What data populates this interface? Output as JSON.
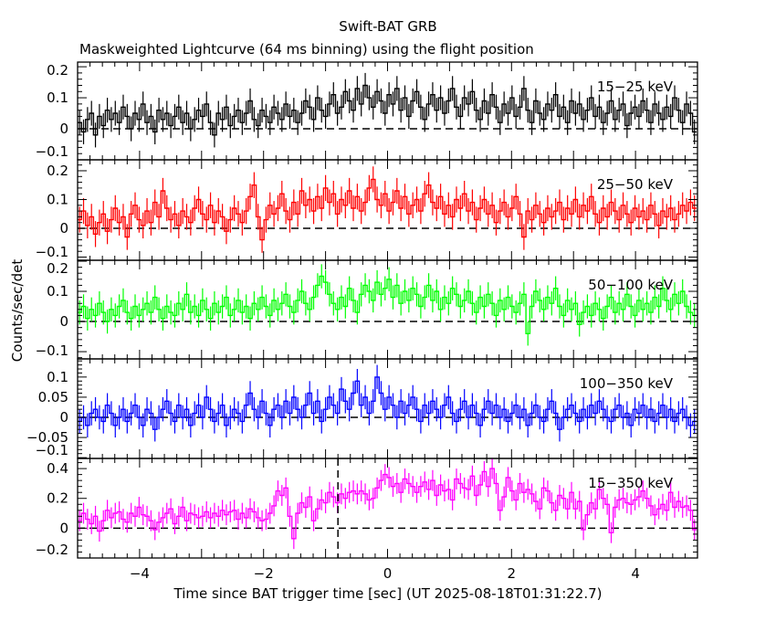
{
  "chart_data": {
    "type": "line",
    "title": "Swift-BAT GRB",
    "subtitle": "Maskweighted Lightcurve (64 ms binning) using the flight position",
    "xlabel": "Time since BAT trigger time [sec] (UT 2025-08-18T01:31:22.7)",
    "ylabel": "Counts/sec/det",
    "xlim": [
      -5,
      5
    ],
    "x_start": -5.0,
    "bin_width": 0.064,
    "xticks": [
      -4,
      -2,
      0,
      2,
      4
    ],
    "xtick_labels": [
      "−4",
      "−2",
      "0",
      "2",
      "4"
    ],
    "marker_line_x": -0.8,
    "panels": [
      {
        "name": "15-25 keV",
        "label": "15−25 keV",
        "color": "#000000",
        "ylim": [
          -0.1,
          0.215
        ],
        "yticks": [
          -0.1,
          0,
          0.1,
          0.2
        ],
        "ytick_labels": [
          "−0.1",
          "0",
          "0.1",
          "0.2"
        ],
        "error": 0.04,
        "values": [
          0.02,
          -0.01,
          0.03,
          0.05,
          -0.02,
          0.04,
          0.01,
          0.06,
          0.03,
          0.05,
          0.02,
          0.07,
          0.04,
          0.0,
          0.05,
          0.03,
          0.08,
          0.02,
          0.04,
          -0.01,
          0.06,
          0.03,
          0.05,
          0.01,
          0.04,
          0.07,
          0.02,
          0.05,
          0.0,
          0.03,
          0.06,
          0.04,
          0.08,
          0.02,
          -0.02,
          0.05,
          0.03,
          0.07,
          0.01,
          0.04,
          0.06,
          0.02,
          0.05,
          0.09,
          0.03,
          0.01,
          0.06,
          0.04,
          0.02,
          0.07,
          0.05,
          0.03,
          0.08,
          0.04,
          0.06,
          0.02,
          0.05,
          0.09,
          0.07,
          0.03,
          0.1,
          0.06,
          0.04,
          0.08,
          0.11,
          0.05,
          0.07,
          0.12,
          0.09,
          0.06,
          0.13,
          0.08,
          0.14,
          0.1,
          0.07,
          0.12,
          0.09,
          0.05,
          0.11,
          0.08,
          0.13,
          0.06,
          0.1,
          0.04,
          0.09,
          0.12,
          0.07,
          0.03,
          0.08,
          0.11,
          0.06,
          0.1,
          0.05,
          0.09,
          0.13,
          0.07,
          0.04,
          0.1,
          0.08,
          0.12,
          0.06,
          0.03,
          0.09,
          0.05,
          0.11,
          0.07,
          0.02,
          0.08,
          0.05,
          0.1,
          0.04,
          0.07,
          0.13,
          0.06,
          0.02,
          0.09,
          0.05,
          0.03,
          0.08,
          0.06,
          0.11,
          0.04,
          0.07,
          0.02,
          0.09,
          0.05,
          0.08,
          0.03,
          0.06,
          0.1,
          0.04,
          0.07,
          0.02,
          0.05,
          0.09,
          0.03,
          0.06,
          0.08,
          0.01,
          0.05,
          0.07,
          0.04,
          0.09,
          0.06,
          0.02,
          0.08,
          0.05,
          0.03,
          0.07,
          0.04,
          0.1,
          0.06,
          0.02,
          0.08,
          0.05,
          -0.01
        ]
      },
      {
        "name": "25-50 keV",
        "label": "25−50 keV",
        "color": "#ff0000",
        "ylim": [
          -0.111,
          0.238
        ],
        "yticks": [
          -0.1,
          0,
          0.1,
          0.2
        ],
        "ytick_labels": [
          "−0.1",
          "0",
          "0.1",
          "0.2"
        ],
        "error": 0.045,
        "values": [
          0.03,
          0.06,
          0.01,
          0.04,
          -0.02,
          0.02,
          0.05,
          -0.01,
          0.03,
          0.07,
          0.02,
          0.04,
          -0.03,
          0.05,
          0.08,
          0.03,
          0.01,
          0.06,
          0.02,
          0.09,
          0.04,
          0.13,
          0.07,
          0.03,
          0.05,
          0.01,
          0.06,
          0.04,
          0.02,
          0.07,
          0.1,
          0.05,
          0.03,
          0.08,
          0.02,
          0.06,
          0.04,
          -0.01,
          0.03,
          0.07,
          0.05,
          0.02,
          0.06,
          0.11,
          0.15,
          0.04,
          -0.04,
          0.03,
          0.08,
          0.05,
          0.07,
          0.12,
          0.06,
          0.03,
          0.09,
          0.05,
          0.13,
          0.08,
          0.1,
          0.06,
          0.11,
          0.07,
          0.14,
          0.09,
          0.12,
          0.05,
          0.1,
          0.08,
          0.13,
          0.07,
          0.11,
          0.06,
          0.09,
          0.14,
          0.17,
          0.1,
          0.08,
          0.12,
          0.06,
          0.09,
          0.13,
          0.07,
          0.11,
          0.05,
          0.08,
          0.1,
          0.06,
          0.12,
          0.15,
          0.09,
          0.07,
          0.11,
          0.05,
          0.08,
          0.04,
          0.1,
          0.07,
          0.12,
          0.06,
          0.09,
          0.03,
          0.07,
          0.1,
          0.05,
          0.08,
          0.02,
          0.06,
          0.09,
          0.04,
          0.07,
          0.11,
          0.05,
          -0.03,
          0.06,
          0.03,
          0.08,
          0.05,
          0.02,
          0.07,
          0.04,
          0.06,
          0.09,
          0.03,
          0.07,
          0.05,
          0.1,
          0.04,
          0.08,
          0.06,
          0.11,
          0.05,
          0.02,
          0.07,
          0.04,
          0.09,
          0.06,
          0.03,
          0.08,
          0.05,
          0.02,
          0.07,
          0.04,
          0.06,
          0.03,
          0.08,
          0.05,
          0.01,
          0.06,
          0.04,
          0.07,
          0.03,
          0.05,
          0.08,
          0.06,
          0.09,
          0.07
        ]
      },
      {
        "name": "50-100 keV",
        "label": "50−100 keV",
        "color": "#00ff00",
        "ylim": [
          -0.124,
          0.203
        ],
        "yticks": [
          -0.1,
          0,
          0.1,
          0.2
        ],
        "ytick_labels": [
          "−0.1",
          "0",
          "0.1",
          "0.2"
        ],
        "error": 0.04,
        "values": [
          0.03,
          0.05,
          0.01,
          0.04,
          0.02,
          0.06,
          0.03,
          0.0,
          0.04,
          0.02,
          0.05,
          0.07,
          0.03,
          0.01,
          0.05,
          0.02,
          0.04,
          0.06,
          0.03,
          0.08,
          0.04,
          0.01,
          0.05,
          0.03,
          0.02,
          0.06,
          0.04,
          0.09,
          0.03,
          0.05,
          0.02,
          0.07,
          0.04,
          0.01,
          0.06,
          0.03,
          0.05,
          0.08,
          0.02,
          0.04,
          0.07,
          0.03,
          0.05,
          0.01,
          0.06,
          0.04,
          0.08,
          0.05,
          0.02,
          0.07,
          0.04,
          0.06,
          0.09,
          0.05,
          0.03,
          0.07,
          0.1,
          0.06,
          0.04,
          0.08,
          0.12,
          0.15,
          0.13,
          0.09,
          0.06,
          0.04,
          0.08,
          0.05,
          0.11,
          0.07,
          0.03,
          0.09,
          0.12,
          0.1,
          0.07,
          0.13,
          0.09,
          0.11,
          0.14,
          0.08,
          0.12,
          0.06,
          0.1,
          0.07,
          0.11,
          0.09,
          0.05,
          0.08,
          0.12,
          0.07,
          0.1,
          0.04,
          0.08,
          0.06,
          0.11,
          0.09,
          0.05,
          0.07,
          0.1,
          0.06,
          0.03,
          0.08,
          0.05,
          0.09,
          0.06,
          0.02,
          0.07,
          0.04,
          0.08,
          0.05,
          0.03,
          0.06,
          0.09,
          -0.04,
          0.05,
          0.1,
          0.07,
          0.04,
          0.08,
          0.06,
          0.11,
          0.05,
          0.02,
          0.07,
          0.04,
          0.06,
          -0.01,
          0.03,
          0.05,
          0.02,
          0.06,
          0.04,
          0.01,
          0.05,
          0.08,
          0.03,
          0.06,
          0.04,
          0.09,
          0.05,
          0.02,
          0.07,
          0.04,
          0.06,
          0.03,
          0.08,
          0.05,
          0.11,
          0.07,
          0.04,
          0.09,
          0.06,
          0.1,
          0.05,
          0.03,
          0.02
        ]
      },
      {
        "name": "100-350 keV",
        "label": "100−350 keV",
        "color": "#0000ff",
        "ylim": [
          -0.102,
          0.145
        ],
        "yticks": [
          -0.1,
          -0.05,
          0,
          0.05,
          0.1
        ],
        "ytick_labels": [
          "−0.1",
          "−0.05",
          "0",
          "0.05",
          "0.1"
        ],
        "error": 0.03,
        "values": [
          -0.01,
          0.0,
          -0.02,
          0.01,
          0.02,
          0.0,
          -0.01,
          0.03,
          0.01,
          -0.02,
          0.0,
          0.02,
          -0.01,
          0.01,
          0.03,
          0.0,
          -0.02,
          0.02,
          0.01,
          -0.03,
          0.0,
          0.02,
          0.04,
          0.01,
          -0.01,
          0.03,
          0.0,
          0.02,
          -0.02,
          0.01,
          0.03,
          0.0,
          0.05,
          0.02,
          -0.01,
          0.01,
          0.03,
          -0.02,
          0.0,
          0.02,
          0.01,
          -0.01,
          0.03,
          0.06,
          0.02,
          0.0,
          0.04,
          0.01,
          -0.02,
          0.02,
          0.03,
          0.0,
          0.04,
          0.01,
          0.05,
          0.02,
          0.0,
          0.03,
          0.06,
          0.01,
          0.04,
          -0.01,
          0.02,
          0.05,
          0.03,
          0.01,
          0.07,
          0.04,
          0.02,
          0.06,
          0.09,
          0.03,
          0.05,
          0.01,
          0.04,
          0.1,
          0.06,
          0.02,
          0.05,
          0.03,
          0.0,
          0.04,
          0.01,
          0.03,
          0.05,
          0.02,
          -0.01,
          0.03,
          0.01,
          0.04,
          0.02,
          0.0,
          0.03,
          0.05,
          0.01,
          -0.01,
          0.02,
          0.04,
          0.0,
          0.03,
          0.01,
          -0.02,
          0.02,
          0.04,
          0.01,
          0.03,
          0.0,
          0.02,
          -0.01,
          0.01,
          0.03,
          0.0,
          0.02,
          -0.02,
          0.01,
          0.03,
          0.0,
          -0.01,
          0.02,
          0.04,
          0.01,
          -0.03,
          0.0,
          0.02,
          0.03,
          0.01,
          -0.01,
          0.02,
          0.0,
          0.03,
          0.01,
          0.04,
          0.02,
          0.0,
          -0.01,
          0.02,
          0.03,
          0.0,
          0.01,
          -0.02,
          0.02,
          0.01,
          0.03,
          0.0,
          0.02,
          -0.01,
          0.01,
          0.03,
          0.0,
          0.02,
          -0.01,
          0.01,
          0.02,
          0.0,
          -0.02,
          -0.01
        ]
      },
      {
        "name": "15-350 keV",
        "label": "15−350 keV",
        "color": "#ff00ff",
        "ylim": [
          -0.2,
          0.468
        ],
        "yticks": [
          -0.2,
          0,
          0.2,
          0.4
        ],
        "ytick_labels": [
          "−0.2",
          "0",
          "0.2",
          "0.4"
        ],
        "error": 0.07,
        "values": [
          0.05,
          0.1,
          0.06,
          0.03,
          0.08,
          -0.02,
          0.05,
          0.12,
          0.07,
          0.1,
          0.11,
          0.06,
          0.04,
          0.1,
          0.08,
          0.14,
          0.09,
          0.08,
          0.05,
          -0.01,
          0.04,
          0.07,
          0.1,
          0.13,
          0.03,
          0.08,
          0.14,
          0.05,
          0.1,
          0.09,
          0.07,
          0.08,
          0.11,
          0.07,
          0.1,
          0.08,
          0.12,
          0.09,
          0.11,
          0.12,
          0.06,
          0.1,
          0.07,
          0.13,
          0.11,
          0.07,
          0.05,
          0.06,
          0.1,
          0.15,
          0.25,
          0.22,
          0.27,
          0.08,
          -0.07,
          0.1,
          0.17,
          0.14,
          0.21,
          0.05,
          0.13,
          0.19,
          0.17,
          0.24,
          0.21,
          0.17,
          0.23,
          0.2,
          0.24,
          0.25,
          0.23,
          0.25,
          0.23,
          0.19,
          0.2,
          0.27,
          0.32,
          0.36,
          0.34,
          0.28,
          0.3,
          0.24,
          0.33,
          0.3,
          0.28,
          0.24,
          0.28,
          0.31,
          0.26,
          0.32,
          0.22,
          0.29,
          0.25,
          0.26,
          0.19,
          0.33,
          0.3,
          0.27,
          0.26,
          0.35,
          0.22,
          0.29,
          0.38,
          0.28,
          0.4,
          0.3,
          0.12,
          0.21,
          0.34,
          0.25,
          0.19,
          0.3,
          0.24,
          0.26,
          0.23,
          0.18,
          0.13,
          0.27,
          0.25,
          0.17,
          0.12,
          0.22,
          0.2,
          0.13,
          0.24,
          0.13,
          0.18,
          -0.01,
          0.09,
          0.17,
          0.13,
          0.26,
          0.2,
          0.16,
          -0.03,
          0.14,
          0.19,
          0.2,
          0.17,
          0.16,
          0.19,
          0.21,
          0.25,
          0.2,
          0.15,
          0.09,
          0.13,
          0.16,
          0.12,
          0.24,
          0.14,
          0.18,
          0.14,
          0.15,
          0.12,
          -0.01
        ]
      }
    ]
  }
}
